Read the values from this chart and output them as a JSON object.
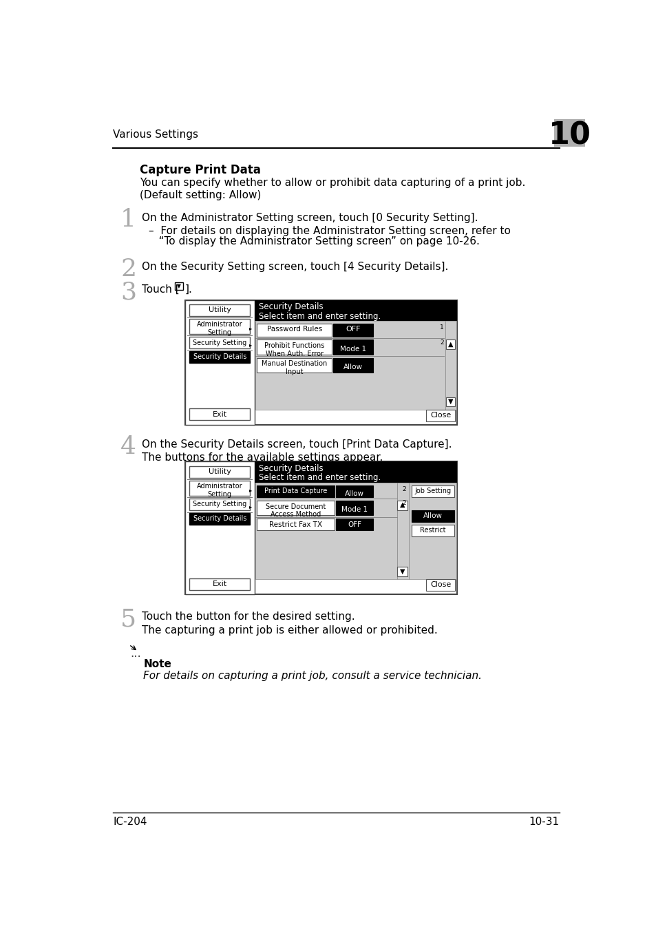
{
  "page_header": "Various Settings",
  "chapter_num": "10",
  "section_title": "Capture Print Data",
  "intro_line1": "You can specify whether to allow or prohibit data capturing of a print job.",
  "intro_line2": "(Default setting: Allow)",
  "step1_text": "On the Administrator Setting screen, touch [0 Security Setting].",
  "step1_sub1": "–  For details on displaying the Administrator Setting screen, refer to",
  "step1_sub2": "   “To display the Administrator Setting screen” on page 10-26.",
  "step2_text": "On the Security Setting screen, touch [4 Security Details].",
  "step3_text": "Touch [",
  "step3_end": "].",
  "step4_text": "On the Security Details screen, touch [Print Data Capture].",
  "step4_sub": "The buttons for the available settings appear.",
  "step5_text": "Touch the button for the desired setting.",
  "step5_sub": "The capturing a print job is either allowed or prohibited.",
  "note_label": "Note",
  "note_text": "For details on capturing a print job, consult a service technician.",
  "footer_left": "IC-204",
  "footer_right": "10-31"
}
